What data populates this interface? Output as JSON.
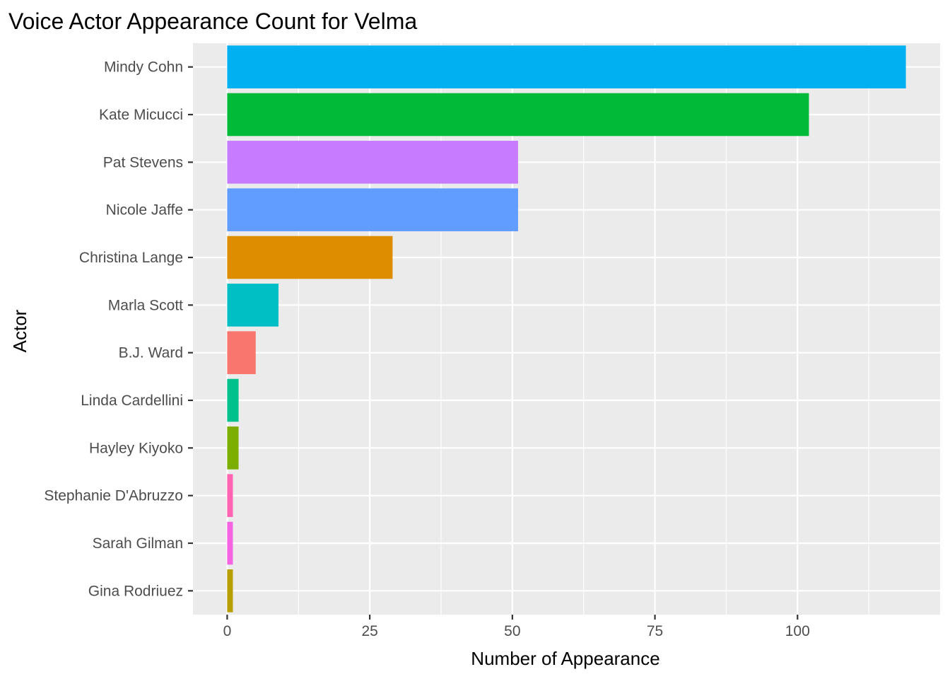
{
  "chart_data": {
    "type": "bar",
    "orientation": "horizontal",
    "title": "Voice Actor Appearance Count for Velma",
    "xlabel": "Number of Appearance",
    "ylabel": "Actor",
    "categories": [
      "Mindy Cohn",
      "Kate Micucci",
      "Pat Stevens",
      "Nicole Jaffe",
      "Christina Lange",
      "Marla Scott",
      "B.J. Ward",
      "Linda Cardellini",
      "Hayley Kiyoko",
      "Stephanie D'Abruzzo",
      "Sarah Gilman",
      "Gina Rodriuez"
    ],
    "values": [
      119,
      102,
      51,
      51,
      29,
      9,
      5,
      2,
      2,
      1,
      1,
      1
    ],
    "colors": [
      "#00B0F0",
      "#00BA38",
      "#C77CFF",
      "#619CFF",
      "#DE8C00",
      "#00BFC4",
      "#F8766D",
      "#00C08B",
      "#7CAE00",
      "#FF64B0",
      "#F564E3",
      "#B79F00"
    ],
    "xlim": [
      -6,
      125
    ],
    "x_ticks": [
      "0",
      "25",
      "50",
      "75",
      "100"
    ],
    "x_tick_values": [
      0,
      25,
      50,
      75,
      100
    ],
    "grid": true,
    "legend": "none",
    "panel_background": "#EBEBEB",
    "gridline_color": "#FFFFFF"
  }
}
